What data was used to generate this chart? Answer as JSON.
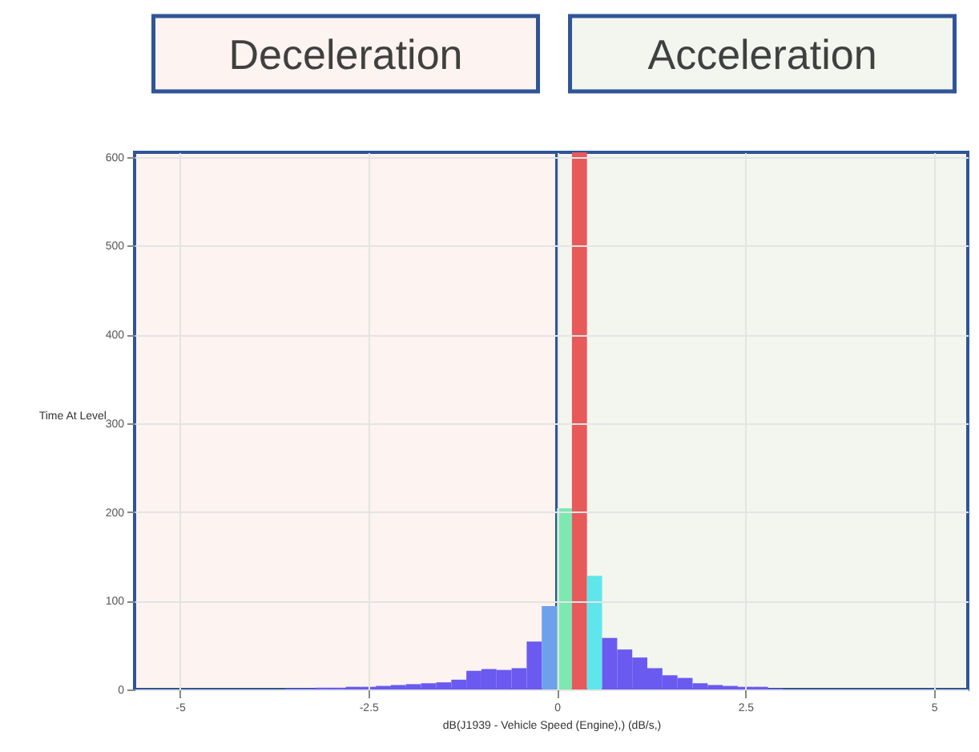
{
  "chart_data": {
    "type": "histogram",
    "xlabel": "dB(J1939 - Vehicle Speed (Engine),) (dB/s,)",
    "ylabel": "Time At Level",
    "bins": [
      -3.6,
      -3.4,
      -3.2,
      -3.0,
      -2.8,
      -2.6,
      -2.4,
      -2.2,
      -2.0,
      -1.8,
      -1.6,
      -1.4,
      -1.2,
      -1.0,
      -0.8,
      -0.6,
      -0.4,
      -0.2,
      0.0,
      0.2,
      0.4,
      0.6,
      0.8,
      1.0,
      1.2,
      1.4,
      1.6,
      1.8,
      2.0,
      2.2,
      2.4,
      2.6,
      2.8,
      3.0
    ],
    "values": [
      1,
      1,
      2,
      2,
      3,
      3,
      4,
      5,
      6,
      7,
      8,
      11,
      21,
      23,
      22,
      24,
      54,
      94,
      204,
      605,
      128,
      58,
      45,
      36,
      24,
      16,
      13,
      7,
      5,
      4,
      3,
      3,
      1
    ],
    "colors": [
      "#6a5af0",
      "#6a5af0",
      "#6a5af0",
      "#6a5af0",
      "#6a5af0",
      "#6a5af0",
      "#6a5af0",
      "#6a5af0",
      "#6a5af0",
      "#6a5af0",
      "#6a5af0",
      "#6a5af0",
      "#6a5af0",
      "#6a5af0",
      "#6a5af0",
      "#6a5af0",
      "#6a5af0",
      "#6fa0ec",
      "#7de8b0",
      "#e85a5a",
      "#5fe6ec",
      "#6a5af0",
      "#6a5af0",
      "#6a5af0",
      "#6a5af0",
      "#6a5af0",
      "#6a5af0",
      "#6a5af0",
      "#6a5af0",
      "#6a5af0",
      "#6a5af0",
      "#6a5af0",
      "#6a5af0"
    ],
    "xlim": [
      -5.6,
      5.45
    ],
    "ylim": [
      0,
      605
    ],
    "xticks": [
      -5,
      -2.5,
      0,
      2.5,
      5
    ],
    "yticks": [
      0,
      100,
      200,
      300,
      400,
      500,
      600
    ],
    "grid": true,
    "bands": [
      {
        "axis": "x",
        "from": -5.6,
        "to": 0,
        "label": "Deceleration",
        "color": "#fdf3f0"
      },
      {
        "axis": "x",
        "from": 0,
        "to": 5.45,
        "label": "Acceleration",
        "color": "#f3f5ef"
      }
    ]
  }
}
